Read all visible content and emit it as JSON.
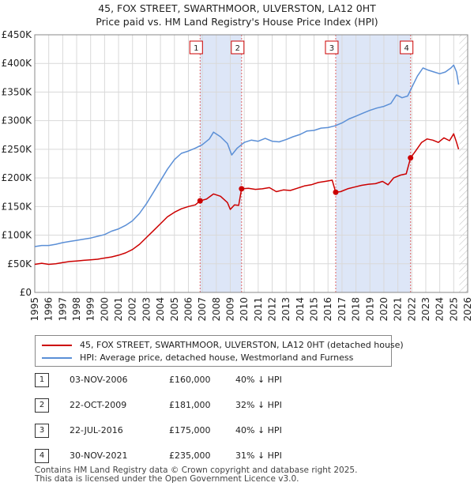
{
  "chart_data": {
    "type": "line",
    "title": "45, FOX STREET, SWARTHMOOR, ULVERSTON, LA12 0HT",
    "subtitle": "Price paid vs. HM Land Registry's House Price Index (HPI)",
    "xlim": [
      1995,
      2026
    ],
    "ylim": [
      0,
      450000
    ],
    "x_ticks": [
      1995,
      1996,
      1997,
      1998,
      1999,
      2000,
      2001,
      2002,
      2003,
      2004,
      2005,
      2006,
      2007,
      2008,
      2009,
      2010,
      2011,
      2012,
      2013,
      2014,
      2015,
      2016,
      2017,
      2018,
      2019,
      2020,
      2021,
      2022,
      2023,
      2024,
      2025,
      2026
    ],
    "x_tick_labels": [
      "1995",
      "1996",
      "1997",
      "1998",
      "1999",
      "2000",
      "2001",
      "2002",
      "2003",
      "2004",
      "2005",
      "2006",
      "2007",
      "2008",
      "2009",
      "2010",
      "2011",
      "2012",
      "2013",
      "2014",
      "2015",
      "2016",
      "2017",
      "2018",
      "2019",
      "2020",
      "2021",
      "2022",
      "2023",
      "2024",
      "2025",
      "2026"
    ],
    "y_ticks": [
      0,
      50000,
      100000,
      150000,
      200000,
      250000,
      300000,
      350000,
      400000,
      450000
    ],
    "y_tick_labels": [
      "£0",
      "£50K",
      "£100K",
      "£150K",
      "£200K",
      "£250K",
      "£300K",
      "£350K",
      "£400K",
      "£450K"
    ],
    "series": [
      {
        "name": "45, FOX STREET, SWARTHMOOR, ULVERSTON, LA12 0HT (detached house)",
        "color": "#cc0000",
        "points": [
          [
            1995.0,
            49000
          ],
          [
            1995.5,
            51000
          ],
          [
            1996.0,
            49000
          ],
          [
            1996.5,
            50000
          ],
          [
            1997.0,
            52000
          ],
          [
            1997.5,
            54000
          ],
          [
            1998.0,
            55000
          ],
          [
            1998.5,
            56000
          ],
          [
            1999.0,
            57000
          ],
          [
            1999.5,
            58000
          ],
          [
            2000.0,
            60000
          ],
          [
            2000.5,
            62000
          ],
          [
            2001.0,
            65000
          ],
          [
            2001.5,
            69000
          ],
          [
            2002.0,
            75000
          ],
          [
            2002.5,
            84000
          ],
          [
            2003.0,
            96000
          ],
          [
            2003.5,
            108000
          ],
          [
            2004.0,
            120000
          ],
          [
            2004.5,
            132000
          ],
          [
            2005.0,
            140000
          ],
          [
            2005.5,
            146000
          ],
          [
            2006.0,
            150000
          ],
          [
            2006.5,
            153000
          ],
          [
            2006.84,
            160000
          ],
          [
            2007.3,
            163000
          ],
          [
            2007.8,
            172000
          ],
          [
            2008.3,
            168000
          ],
          [
            2008.8,
            157000
          ],
          [
            2009.0,
            145000
          ],
          [
            2009.3,
            153000
          ],
          [
            2009.6,
            152000
          ],
          [
            2009.81,
            181000
          ],
          [
            2010.3,
            182000
          ],
          [
            2010.8,
            180000
          ],
          [
            2011.3,
            181000
          ],
          [
            2011.8,
            183000
          ],
          [
            2012.3,
            176000
          ],
          [
            2012.8,
            179000
          ],
          [
            2013.3,
            178000
          ],
          [
            2013.8,
            182000
          ],
          [
            2014.3,
            186000
          ],
          [
            2014.8,
            188000
          ],
          [
            2015.3,
            192000
          ],
          [
            2015.8,
            194000
          ],
          [
            2016.3,
            196000
          ],
          [
            2016.55,
            175000
          ],
          [
            2016.9,
            176000
          ],
          [
            2017.4,
            181000
          ],
          [
            2017.9,
            184000
          ],
          [
            2018.4,
            187000
          ],
          [
            2018.9,
            189000
          ],
          [
            2019.4,
            190000
          ],
          [
            2019.9,
            194000
          ],
          [
            2020.3,
            188000
          ],
          [
            2020.7,
            200000
          ],
          [
            2021.2,
            205000
          ],
          [
            2021.6,
            207000
          ],
          [
            2021.91,
            235000
          ],
          [
            2022.3,
            248000
          ],
          [
            2022.7,
            262000
          ],
          [
            2023.1,
            268000
          ],
          [
            2023.5,
            266000
          ],
          [
            2023.9,
            262000
          ],
          [
            2024.3,
            270000
          ],
          [
            2024.7,
            265000
          ],
          [
            2025.0,
            277000
          ],
          [
            2025.2,
            262000
          ],
          [
            2025.35,
            250000
          ]
        ]
      },
      {
        "name": "HPI: Average price, detached house, Westmorland and Furness",
        "color": "#5b8fd6",
        "points": [
          [
            1995.0,
            80000
          ],
          [
            1995.5,
            82000
          ],
          [
            1996.0,
            82000
          ],
          [
            1996.5,
            84000
          ],
          [
            1997.0,
            87000
          ],
          [
            1997.5,
            89000
          ],
          [
            1998.0,
            91000
          ],
          [
            1998.5,
            93000
          ],
          [
            1999.0,
            95000
          ],
          [
            1999.5,
            98000
          ],
          [
            2000.0,
            101000
          ],
          [
            2000.5,
            107000
          ],
          [
            2001.0,
            111000
          ],
          [
            2001.5,
            117000
          ],
          [
            2002.0,
            125000
          ],
          [
            2002.5,
            138000
          ],
          [
            2003.0,
            155000
          ],
          [
            2003.5,
            175000
          ],
          [
            2004.0,
            195000
          ],
          [
            2004.5,
            215000
          ],
          [
            2005.0,
            232000
          ],
          [
            2005.5,
            243000
          ],
          [
            2006.0,
            247000
          ],
          [
            2006.5,
            252000
          ],
          [
            2007.0,
            258000
          ],
          [
            2007.5,
            268000
          ],
          [
            2007.8,
            280000
          ],
          [
            2008.3,
            272000
          ],
          [
            2008.8,
            260000
          ],
          [
            2009.1,
            240000
          ],
          [
            2009.5,
            252000
          ],
          [
            2010.0,
            262000
          ],
          [
            2010.5,
            266000
          ],
          [
            2011.0,
            264000
          ],
          [
            2011.5,
            269000
          ],
          [
            2012.0,
            264000
          ],
          [
            2012.5,
            263000
          ],
          [
            2013.0,
            267000
          ],
          [
            2013.5,
            272000
          ],
          [
            2014.0,
            276000
          ],
          [
            2014.5,
            282000
          ],
          [
            2015.0,
            283000
          ],
          [
            2015.5,
            287000
          ],
          [
            2016.0,
            288000
          ],
          [
            2016.5,
            291000
          ],
          [
            2017.0,
            296000
          ],
          [
            2017.5,
            303000
          ],
          [
            2018.0,
            308000
          ],
          [
            2018.5,
            313000
          ],
          [
            2019.0,
            318000
          ],
          [
            2019.5,
            322000
          ],
          [
            2020.0,
            325000
          ],
          [
            2020.5,
            330000
          ],
          [
            2020.9,
            345000
          ],
          [
            2021.3,
            340000
          ],
          [
            2021.7,
            343000
          ],
          [
            2022.0,
            358000
          ],
          [
            2022.4,
            378000
          ],
          [
            2022.8,
            392000
          ],
          [
            2023.2,
            388000
          ],
          [
            2023.6,
            385000
          ],
          [
            2024.0,
            382000
          ],
          [
            2024.4,
            385000
          ],
          [
            2024.8,
            392000
          ],
          [
            2025.0,
            397000
          ],
          [
            2025.2,
            385000
          ],
          [
            2025.35,
            363000
          ]
        ]
      }
    ],
    "transactions": [
      {
        "label": "1",
        "x": 2006.84,
        "price": 160000
      },
      {
        "label": "2",
        "x": 2009.81,
        "price": 181000
      },
      {
        "label": "3",
        "x": 2016.55,
        "price": 175000
      },
      {
        "label": "4",
        "x": 2021.91,
        "price": 235000
      }
    ],
    "highlight_bands": [
      [
        2006.84,
        2009.81
      ],
      [
        2016.55,
        2021.91
      ]
    ],
    "future_start": 2025.4
  },
  "legend": {
    "property_label": "45, FOX STREET, SWARTHMOOR, ULVERSTON, LA12 0HT (detached house)",
    "hpi_label": "HPI: Average price, detached house, Westmorland and Furness"
  },
  "table": {
    "rows": [
      {
        "num": "1",
        "date": "03-NOV-2006",
        "price": "£160,000",
        "hpi": "40% ↓ HPI"
      },
      {
        "num": "2",
        "date": "22-OCT-2009",
        "price": "£181,000",
        "hpi": "32% ↓ HPI"
      },
      {
        "num": "3",
        "date": "22-JUL-2016",
        "price": "£175,000",
        "hpi": "40% ↓ HPI"
      },
      {
        "num": "4",
        "date": "30-NOV-2021",
        "price": "£235,000",
        "hpi": "31% ↓ HPI"
      }
    ]
  },
  "footer": {
    "line1": "Contains HM Land Registry data © Crown copyright and database right 2025.",
    "line2": "This data is licensed under the Open Government Licence v3.0."
  }
}
